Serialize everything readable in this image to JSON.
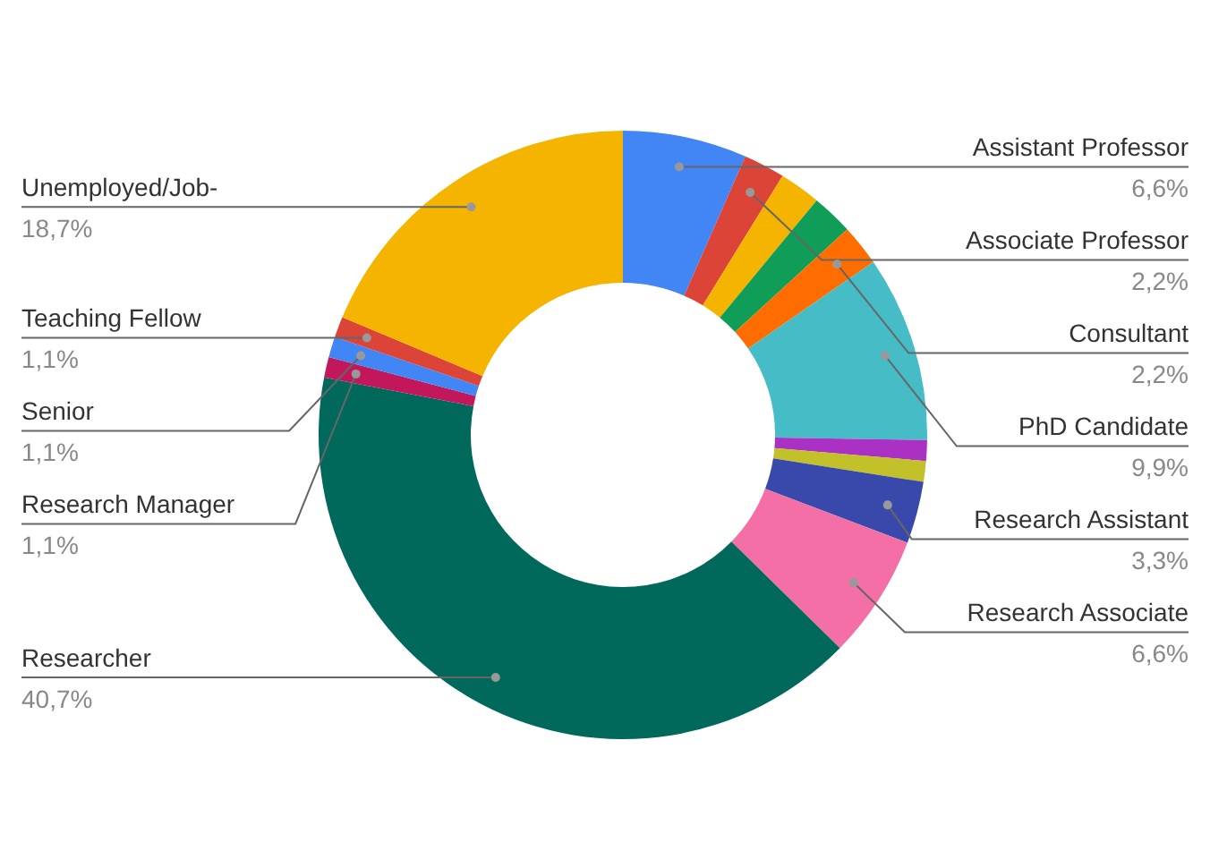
{
  "chart_data": {
    "type": "donut",
    "legend": false,
    "categories": [
      "Assistant Professor",
      "Associate Professor",
      null,
      null,
      "Consultant",
      "PhD Candidate",
      null,
      null,
      "Research Assistant",
      "Research Associate",
      "Researcher",
      "Research Manager",
      "Senior",
      "Teaching Fellow",
      "Unemployed/Job-"
    ],
    "values": [
      6.6,
      2.2,
      2.2,
      2.2,
      2.2,
      9.9,
      1.1,
      1.1,
      3.3,
      6.6,
      40.7,
      1.1,
      1.1,
      1.1,
      18.7
    ],
    "value_labels": [
      "6,6%",
      "2,2%",
      null,
      null,
      "2,2%",
      "9,9%",
      null,
      null,
      "3,3%",
      "6,6%",
      "40,7%",
      "1,1%",
      "1,1%",
      "1,1%",
      "18,7%"
    ],
    "colors": [
      "#4285f4",
      "#db4437",
      "#f4b400",
      "#0f9d58",
      "#ff6d00",
      "#46bdc6",
      "#ab30c4",
      "#c2c12a",
      "#3949ab",
      "#f46fa5",
      "#00695c",
      "#c2185b",
      "#4285f4",
      "#db4437",
      "#f4b400"
    ]
  }
}
